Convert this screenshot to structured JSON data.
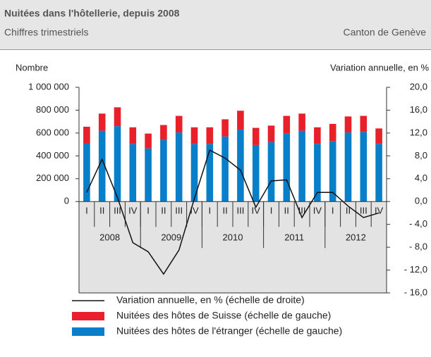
{
  "chart_data": {
    "type": "bar",
    "title": "Nuitées dans l'hôtellerie, depuis 2008",
    "subtitle": "Chiffres trimestriels",
    "source_label": "Canton de Genève",
    "y_label": "Nombre",
    "y2_label": "Variation annuelle, en %",
    "categories": [
      "I",
      "II",
      "III",
      "IV",
      "I",
      "II",
      "III",
      "IV",
      "I",
      "II",
      "III",
      "IV",
      "I",
      "II",
      "III",
      "IV",
      "I",
      "II",
      "III",
      "IV"
    ],
    "groups": [
      "2008",
      "2009",
      "2010",
      "2011",
      "2012"
    ],
    "series": [
      {
        "name": "Nuitées des hôtes de l'étranger (échelle de gauche)",
        "color": "#0a7fc9",
        "values": [
          510000,
          620000,
          660000,
          505000,
          465000,
          540000,
          605000,
          505000,
          505000,
          570000,
          630000,
          495000,
          520000,
          595000,
          620000,
          505000,
          530000,
          605000,
          610000,
          505000
        ]
      },
      {
        "name": "Nuitées des hôtes de Suisse (échelle de gauche)",
        "color": "#e8202a",
        "values": [
          145000,
          150000,
          165000,
          145000,
          130000,
          130000,
          145000,
          145000,
          145000,
          150000,
          165000,
          150000,
          145000,
          155000,
          150000,
          145000,
          150000,
          140000,
          140000,
          135000
        ]
      },
      {
        "name": "Variation annuelle, en % (échelle de droite)",
        "color": "#111111",
        "type": "line",
        "axis": "y2",
        "values": [
          1.6,
          7.4,
          0.7,
          -7.2,
          -8.8,
          -12.7,
          -8.5,
          0.5,
          9.0,
          7.6,
          5.5,
          -1.0,
          3.6,
          3.8,
          -2.8,
          1.6,
          1.6,
          -0.8,
          -2.8,
          -2.0
        ]
      }
    ],
    "ylim": [
      -800000,
      1000000
    ],
    "yticks": [
      {
        "value": 0,
        "label": "0"
      },
      {
        "value": 200000,
        "label": "200 000"
      },
      {
        "value": 400000,
        "label": "400 000"
      },
      {
        "value": 600000,
        "label": "600 000"
      },
      {
        "value": 800000,
        "label": "800 000"
      },
      {
        "value": 1000000,
        "label": "1 000 000"
      }
    ],
    "y2lim": [
      -16,
      20
    ],
    "y2ticks": [
      {
        "value": -16,
        "label": "- 16,0"
      },
      {
        "value": -12,
        "label": "- 12,0"
      },
      {
        "value": -8,
        "label": "- 8,0"
      },
      {
        "value": -4,
        "label": "- 4,0"
      },
      {
        "value": 0,
        "label": "0,0"
      },
      {
        "value": 4,
        "label": "4,0"
      },
      {
        "value": 8,
        "label": "8,0"
      },
      {
        "value": 12,
        "label": "12,0"
      },
      {
        "value": 16,
        "label": "16,0"
      },
      {
        "value": 20,
        "label": "20,0"
      }
    ]
  }
}
